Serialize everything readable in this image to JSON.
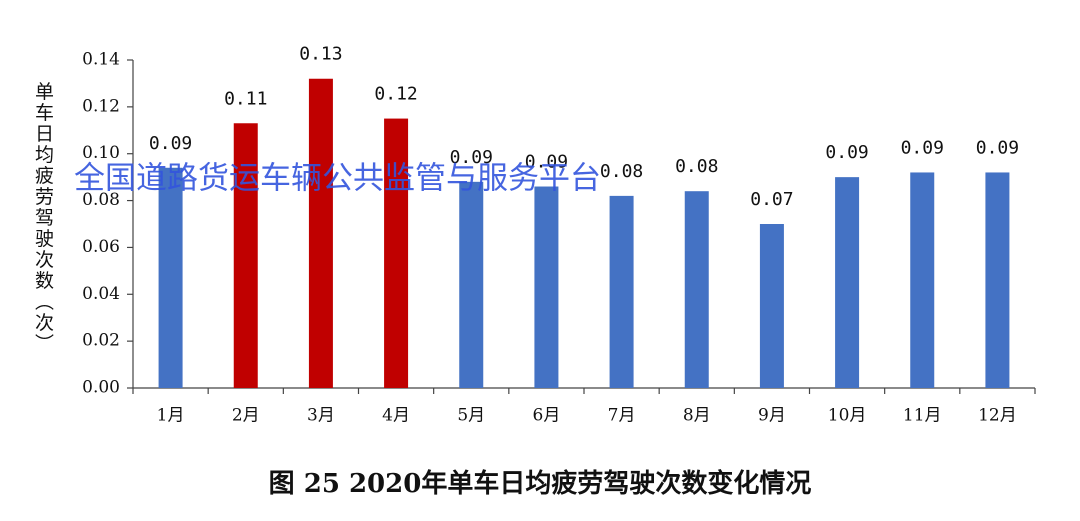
{
  "chart_data": {
    "type": "bar",
    "title": "图 25 2020年单车日均疲劳驾驶次数变化情况",
    "y_label": "单车日均疲劳驾驶次数（次）",
    "watermark": "全国道路货运车辆公共监管与服务平台",
    "categories": [
      "1月",
      "2月",
      "3月",
      "4月",
      "5月",
      "6月",
      "7月",
      "8月",
      "9月",
      "10月",
      "11月",
      "12月"
    ],
    "values": [
      0.094,
      0.113,
      0.132,
      0.115,
      0.088,
      0.086,
      0.082,
      0.084,
      0.07,
      0.09,
      0.092,
      0.092
    ],
    "value_labels": [
      "0.09",
      "0.11",
      "0.13",
      "0.12",
      "0.09",
      "0.09",
      "0.08",
      "0.08",
      "0.07",
      "0.09",
      "0.09",
      "0.09"
    ],
    "colors": [
      "#4472c4",
      "#c00000",
      "#c00000",
      "#c00000",
      "#4472c4",
      "#4472c4",
      "#4472c4",
      "#4472c4",
      "#4472c4",
      "#4472c4",
      "#4472c4",
      "#4472c4"
    ],
    "ylim": [
      0,
      0.14
    ],
    "yticks": [
      {
        "value": 0,
        "label": "0.00"
      },
      {
        "value": 0.02,
        "label": "0.02"
      },
      {
        "value": 0.04,
        "label": "0.04"
      },
      {
        "value": 0.06,
        "label": "0.06"
      },
      {
        "value": 0.08,
        "label": "0.08"
      },
      {
        "value": 0.1,
        "label": "0.10"
      },
      {
        "value": 0.12,
        "label": "0.12"
      },
      {
        "value": 0.14,
        "label": "0.14"
      }
    ],
    "grid": false
  }
}
